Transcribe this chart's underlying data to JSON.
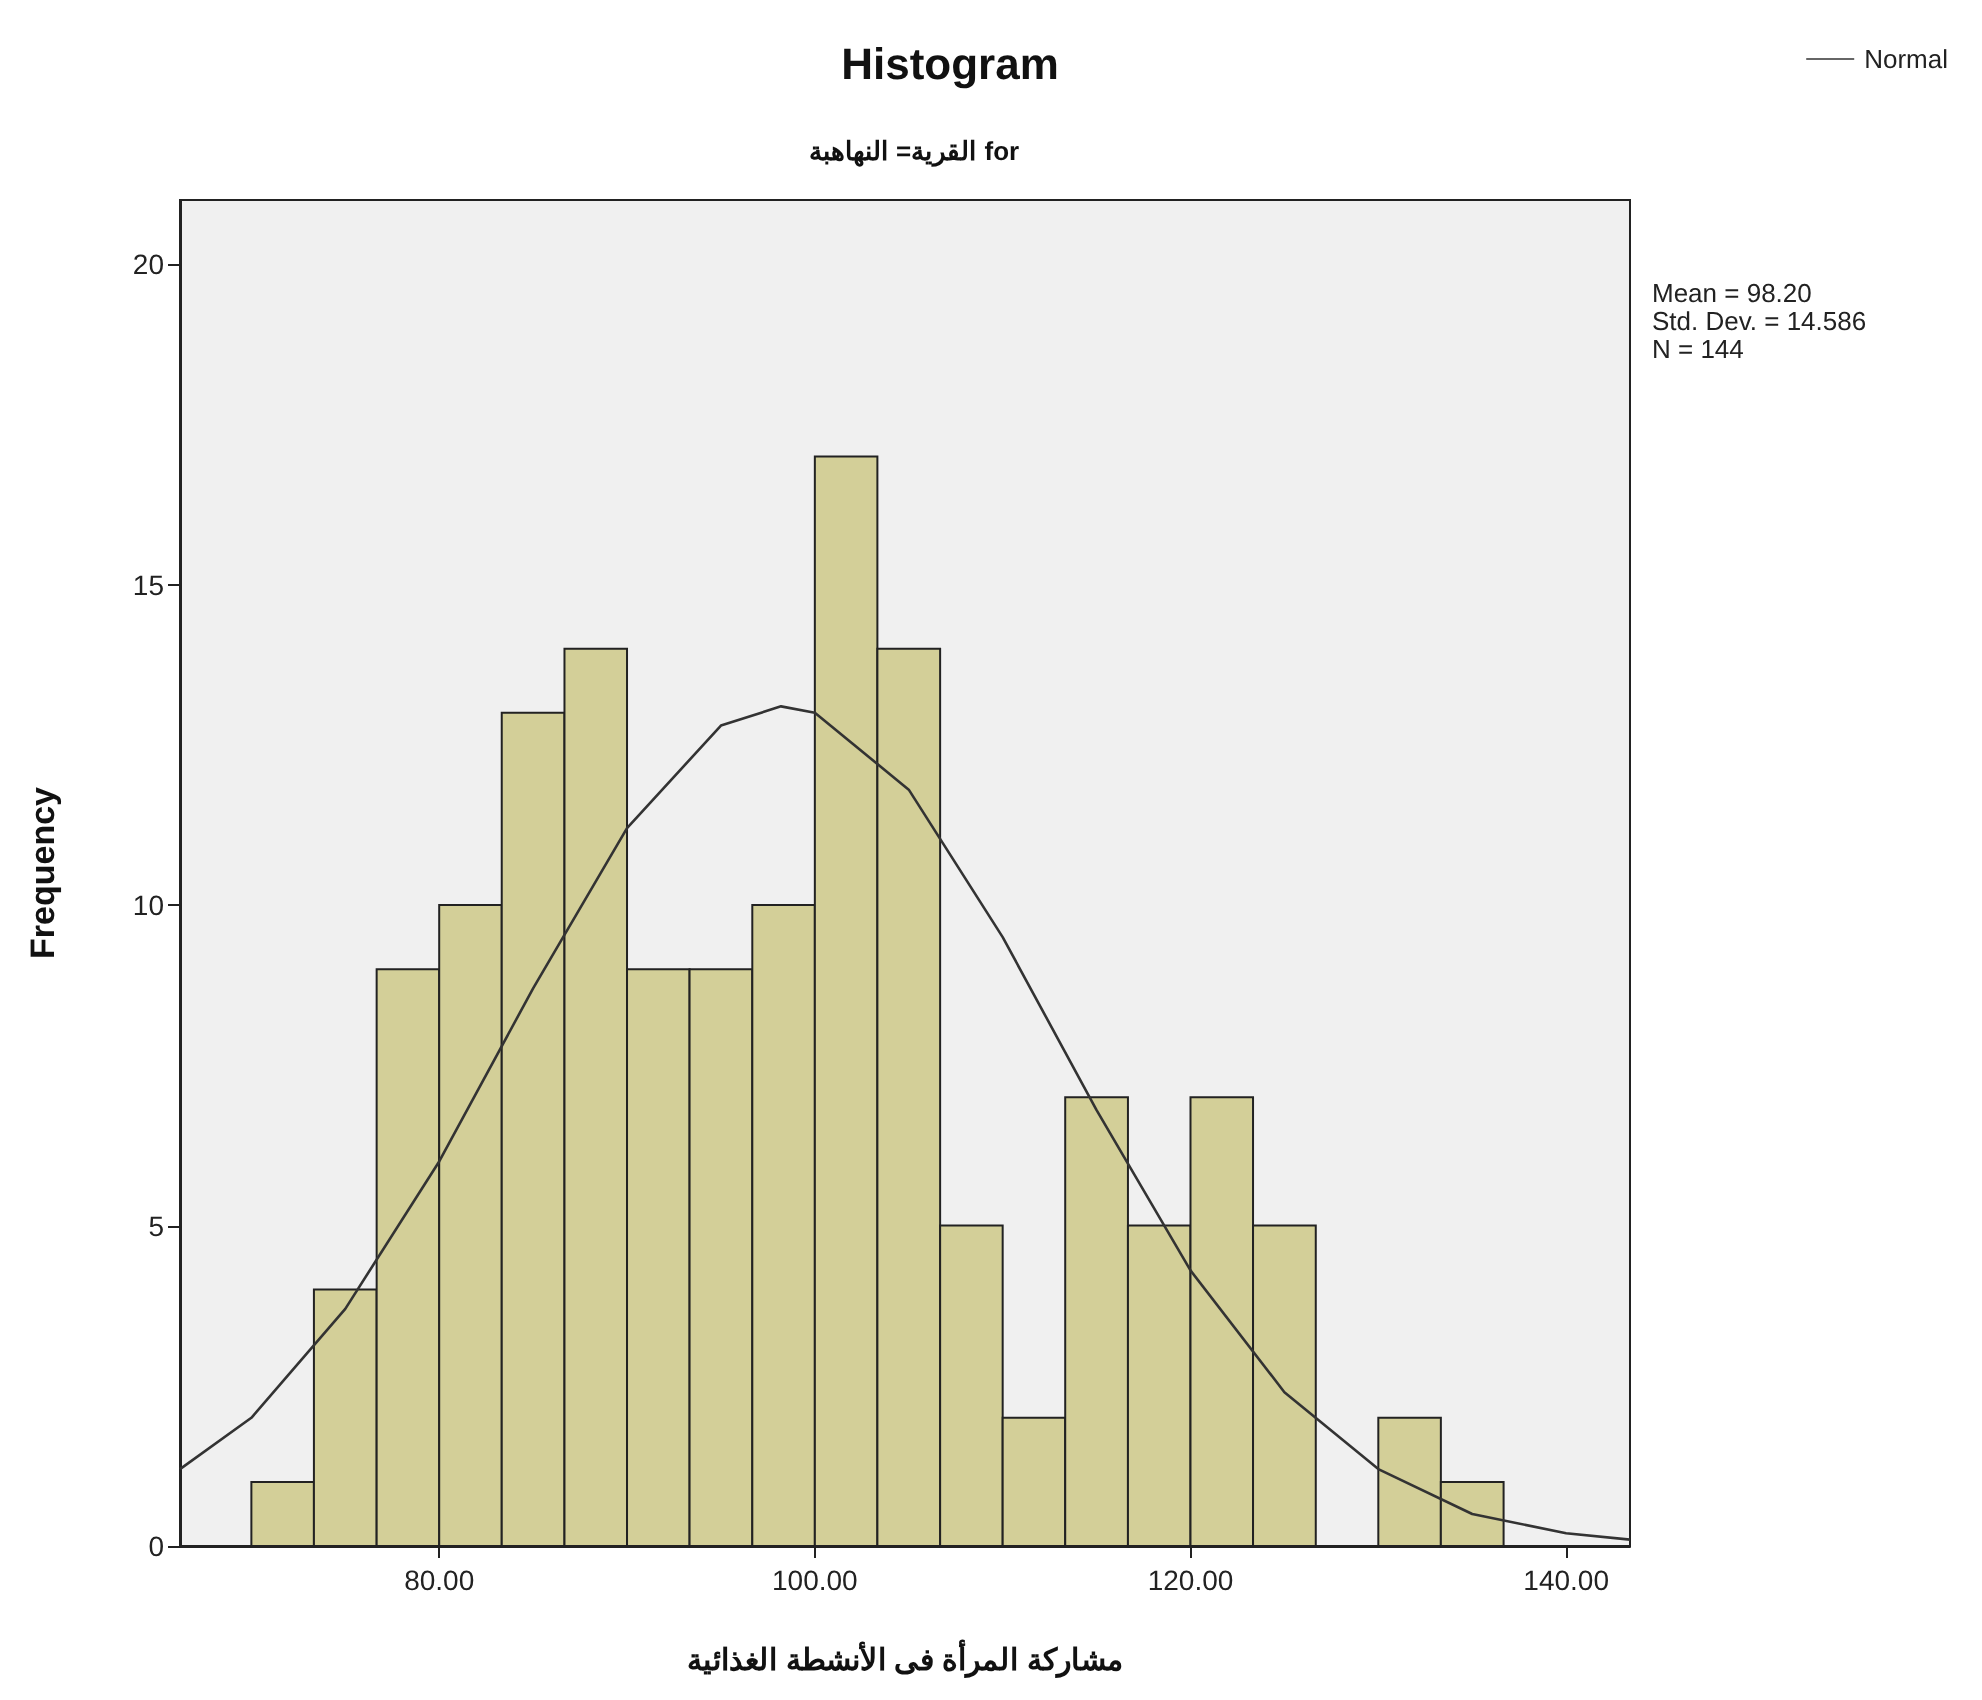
{
  "chart_data": {
    "type": "histogram",
    "title": "Histogram",
    "subtitle": "القرية= النهاهبة for",
    "xlabel": "مشاركة المرأة فى الأنشطة الغذائية",
    "ylabel": "Frequency",
    "bins": [
      70,
      73.33,
      76.67,
      80,
      83.33,
      86.67,
      90,
      93.33,
      96.67,
      100,
      103.33,
      106.67,
      110,
      113.33,
      116.67,
      120,
      123.33,
      126.67,
      130,
      133.33,
      136.67
    ],
    "series": [
      {
        "color": "#d3cf98",
        "values": [
          1,
          4,
          9,
          10,
          13,
          14,
          9,
          9,
          10,
          17,
          14,
          5,
          2,
          7,
          5,
          7,
          5,
          0,
          2,
          1
        ]
      },
      {
        "type": "line",
        "name": "Normal",
        "color": "#333333",
        "x": [
          66.2,
          70,
          75,
          80,
          85,
          90,
          95,
          98.2,
          100,
          105,
          110,
          115,
          120,
          125,
          130,
          135,
          140,
          143.4
        ],
        "values": [
          1.2,
          2.0,
          3.7,
          6.0,
          8.7,
          11.2,
          12.8,
          13.1,
          13.0,
          11.8,
          9.5,
          6.8,
          4.3,
          2.4,
          1.2,
          0.5,
          0.2,
          0.1
        ]
      }
    ],
    "xlim": [
      66.2,
      143.4
    ],
    "xticks": [
      {
        "value": 80,
        "label": "80.00"
      },
      {
        "value": 100,
        "label": "100.00"
      },
      {
        "value": 120,
        "label": "120.00"
      },
      {
        "value": 140,
        "label": "140.00"
      }
    ],
    "ylim": [
      0,
      21
    ],
    "yticks": [
      0,
      5,
      10,
      15,
      20
    ],
    "legend": "top right",
    "marker": "none",
    "annotations": [
      "Mean = 98.20",
      "Std. Dev. = 14.586",
      "N = 144"
    ]
  }
}
